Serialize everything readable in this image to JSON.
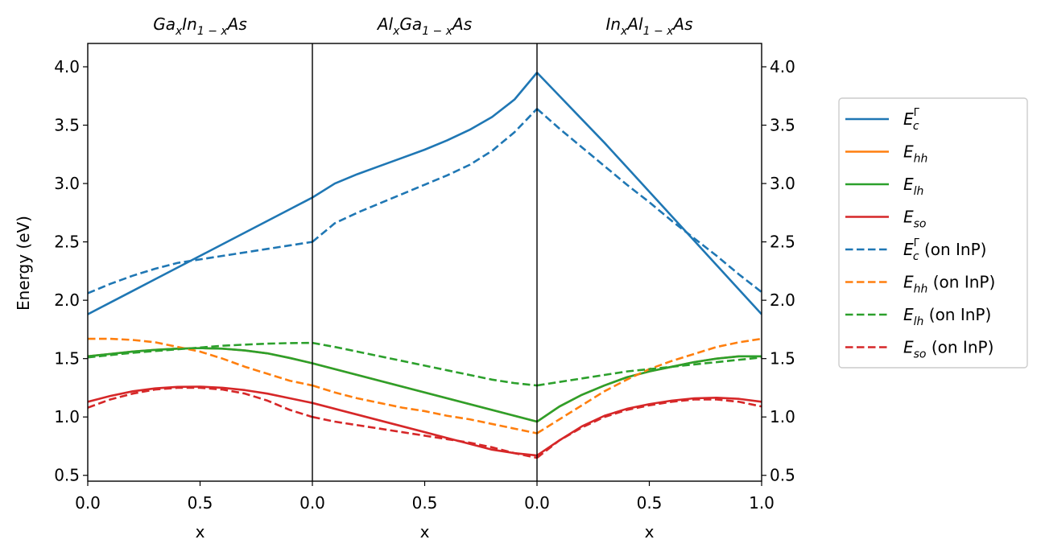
{
  "chart_data": {
    "type": "line",
    "ylabel": "Energy (eV)",
    "ylim": [
      0.45,
      4.2
    ],
    "yticks": [
      "0.5",
      "1.0",
      "1.5",
      "2.0",
      "2.5",
      "3.0",
      "3.5",
      "4.0"
    ],
    "grid": false,
    "legend_position": "right, outside plot",
    "panels": [
      {
        "title_base1": "Ga",
        "title_sub1": "x",
        "title_base2": "In",
        "title_sub2": "1 − x",
        "title_base3": "As",
        "xlabel": "x",
        "xlim": [
          0,
          1
        ],
        "xticks": [
          "0.0",
          "0.5"
        ]
      },
      {
        "title_base1": "Al",
        "title_sub1": "x",
        "title_base2": "Ga",
        "title_sub2": "1 − x",
        "title_base3": "As",
        "xlabel": "x",
        "xlim": [
          0,
          1
        ],
        "xticks": [
          "0.0",
          "0.5"
        ]
      },
      {
        "title_base1": "In",
        "title_sub1": "x",
        "title_base2": "Al",
        "title_sub2": "1 − x",
        "title_base3": "As",
        "xlabel": "x",
        "xlim": [
          0,
          1
        ],
        "xticks": [
          "0.0",
          "0.5",
          "1.0"
        ]
      }
    ],
    "x": [
      0.0,
      0.1,
      0.2,
      0.3,
      0.4,
      0.5,
      0.6,
      0.7,
      0.8,
      0.9,
      1.0
    ],
    "series": [
      {
        "name_base": "E",
        "name_sub": "c",
        "name_sup": "Γ",
        "name_suffix": "",
        "color": "#1f77b4",
        "dash": "solid",
        "values": [
          [
            1.88,
            1.98,
            2.08,
            2.18,
            2.28,
            2.38,
            2.48,
            2.58,
            2.68,
            2.78,
            2.88
          ],
          [
            2.88,
            3.0,
            3.08,
            3.15,
            3.22,
            3.29,
            3.37,
            3.46,
            3.57,
            3.72,
            3.95
          ],
          [
            3.95,
            3.75,
            3.55,
            3.35,
            3.14,
            2.93,
            2.72,
            2.51,
            2.3,
            2.09,
            1.88
          ]
        ]
      },
      {
        "name_base": "E",
        "name_sub": "hh",
        "name_sup": "",
        "name_suffix": "",
        "color": "#ff7f0e",
        "dash": "solid",
        "values": [
          [
            1.52,
            1.54,
            1.56,
            1.575,
            1.585,
            1.59,
            1.585,
            1.57,
            1.545,
            1.505,
            1.46
          ],
          [
            1.46,
            1.41,
            1.36,
            1.31,
            1.26,
            1.21,
            1.16,
            1.11,
            1.06,
            1.01,
            0.96
          ],
          [
            0.96,
            1.09,
            1.19,
            1.27,
            1.34,
            1.39,
            1.43,
            1.47,
            1.5,
            1.52,
            1.52
          ]
        ]
      },
      {
        "name_base": "E",
        "name_sub": "lh",
        "name_sup": "",
        "name_suffix": "",
        "color": "#2ca02c",
        "dash": "solid",
        "values": [
          [
            1.52,
            1.54,
            1.56,
            1.575,
            1.585,
            1.59,
            1.585,
            1.57,
            1.545,
            1.505,
            1.46
          ],
          [
            1.46,
            1.41,
            1.36,
            1.31,
            1.26,
            1.21,
            1.16,
            1.11,
            1.06,
            1.01,
            0.96
          ],
          [
            0.96,
            1.09,
            1.19,
            1.27,
            1.34,
            1.39,
            1.43,
            1.47,
            1.5,
            1.52,
            1.52
          ]
        ]
      },
      {
        "name_base": "E",
        "name_sub": "so",
        "name_sup": "",
        "name_suffix": "",
        "color": "#d62728",
        "dash": "solid",
        "values": [
          [
            1.13,
            1.18,
            1.22,
            1.245,
            1.258,
            1.26,
            1.25,
            1.23,
            1.2,
            1.16,
            1.12
          ],
          [
            1.12,
            1.07,
            1.02,
            0.97,
            0.92,
            0.87,
            0.82,
            0.77,
            0.72,
            0.69,
            0.67
          ],
          [
            0.67,
            0.8,
            0.92,
            1.01,
            1.07,
            1.11,
            1.14,
            1.16,
            1.165,
            1.155,
            1.13
          ]
        ]
      },
      {
        "name_base": "E",
        "name_sub": "c",
        "name_sup": "Γ",
        "name_suffix": " (on InP)",
        "color": "#1f77b4",
        "dash": "dashed",
        "values": [
          [
            2.06,
            2.14,
            2.21,
            2.27,
            2.32,
            2.35,
            2.38,
            2.41,
            2.44,
            2.47,
            2.5
          ],
          [
            2.5,
            2.66,
            2.75,
            2.83,
            2.91,
            2.99,
            3.07,
            3.16,
            3.28,
            3.44,
            3.64
          ],
          [
            3.64,
            3.47,
            3.31,
            3.15,
            2.99,
            2.84,
            2.68,
            2.53,
            2.38,
            2.22,
            2.07
          ]
        ]
      },
      {
        "name_base": "E",
        "name_sub": "hh",
        "name_sup": "",
        "name_suffix": " (on InP)",
        "color": "#ff7f0e",
        "dash": "dashed",
        "values": [
          [
            1.67,
            1.67,
            1.66,
            1.64,
            1.6,
            1.56,
            1.5,
            1.43,
            1.37,
            1.31,
            1.27
          ],
          [
            1.27,
            1.21,
            1.16,
            1.12,
            1.08,
            1.05,
            1.01,
            0.98,
            0.94,
            0.9,
            0.86
          ],
          [
            0.86,
            0.98,
            1.1,
            1.22,
            1.32,
            1.41,
            1.48,
            1.54,
            1.6,
            1.64,
            1.67
          ]
        ]
      },
      {
        "name_base": "E",
        "name_sub": "lh",
        "name_sup": "",
        "name_suffix": " (on InP)",
        "color": "#2ca02c",
        "dash": "dashed",
        "values": [
          [
            1.51,
            1.53,
            1.55,
            1.565,
            1.58,
            1.595,
            1.61,
            1.62,
            1.628,
            1.633,
            1.635
          ],
          [
            1.635,
            1.6,
            1.56,
            1.52,
            1.48,
            1.44,
            1.4,
            1.36,
            1.32,
            1.29,
            1.27
          ],
          [
            1.27,
            1.3,
            1.33,
            1.36,
            1.39,
            1.41,
            1.43,
            1.45,
            1.47,
            1.49,
            1.51
          ]
        ]
      },
      {
        "name_base": "E",
        "name_sub": "so",
        "name_sup": "",
        "name_suffix": " (on InP)",
        "color": "#d62728",
        "dash": "dashed",
        "values": [
          [
            1.08,
            1.15,
            1.2,
            1.235,
            1.25,
            1.25,
            1.235,
            1.2,
            1.14,
            1.06,
            1.0
          ],
          [
            1.0,
            0.96,
            0.93,
            0.9,
            0.87,
            0.84,
            0.81,
            0.78,
            0.74,
            0.69,
            0.65
          ],
          [
            0.65,
            0.8,
            0.91,
            1.0,
            1.06,
            1.1,
            1.13,
            1.15,
            1.15,
            1.13,
            1.09
          ]
        ]
      }
    ]
  }
}
